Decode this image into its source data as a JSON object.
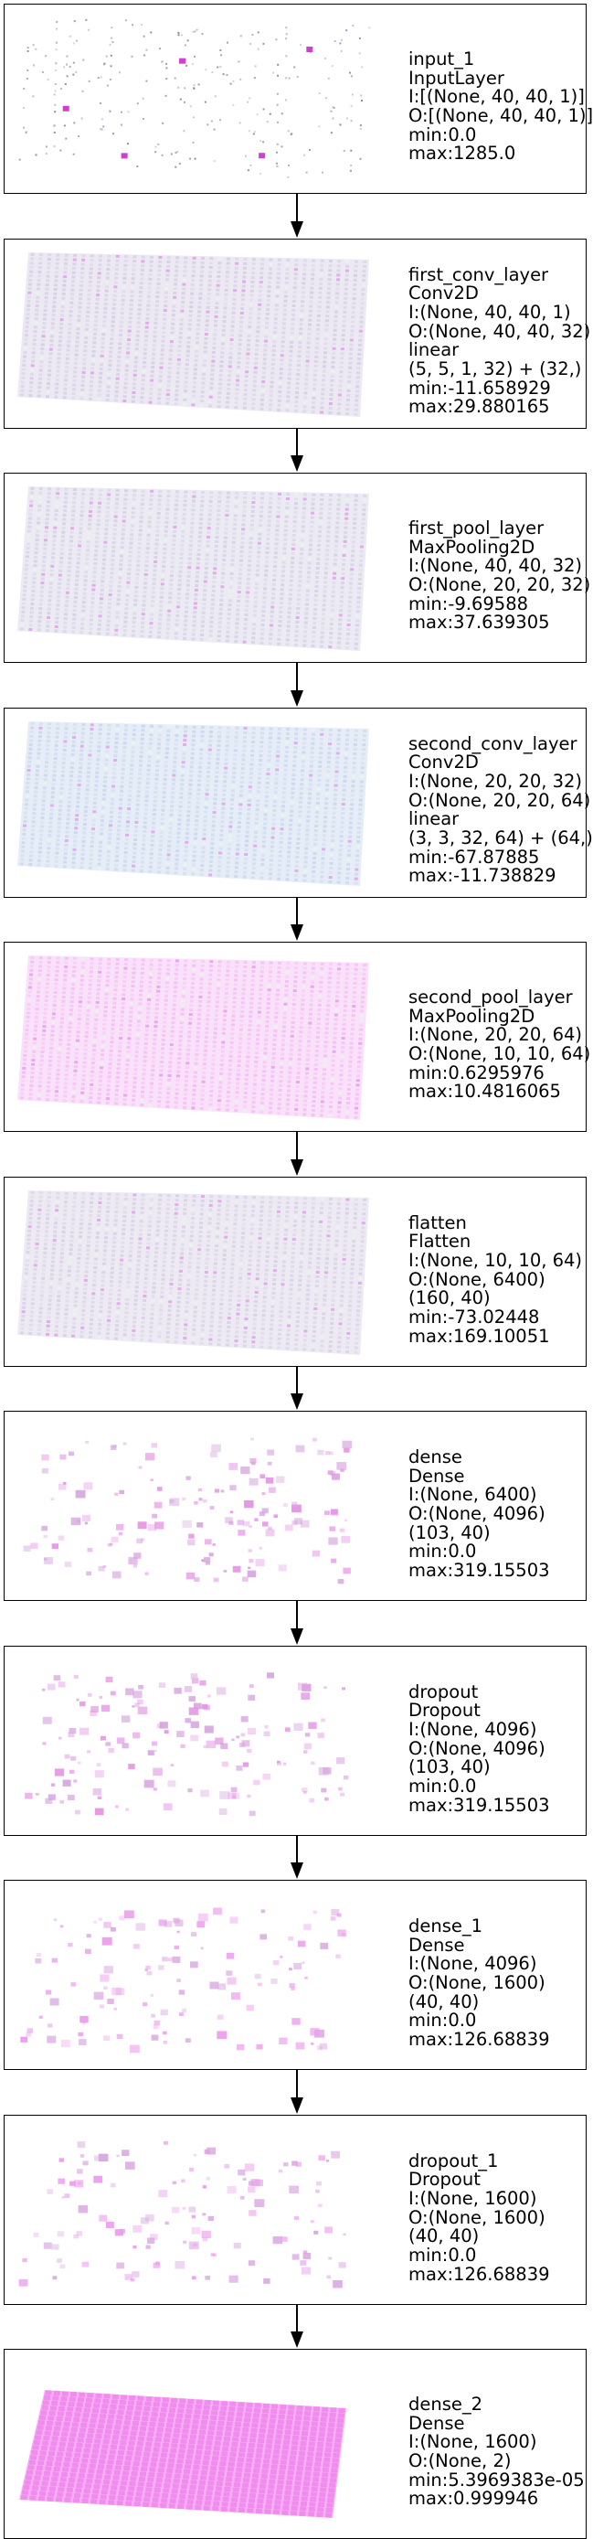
{
  "layers": [
    {
      "id": "input_1",
      "lines": [
        "input_1",
        "InputLayer",
        "I:[(None, 40, 40, 1)]",
        "O:[(None, 40, 40, 1)]",
        "min:0.0",
        "max:1285.0"
      ],
      "viz": "input",
      "color": "#b0a0c0"
    },
    {
      "id": "first_conv_layer",
      "lines": [
        "first_conv_layer",
        "Conv2D",
        "I:(None, 40, 40, 1)",
        "O:(None, 40, 40, 32)",
        "linear",
        "(5, 5, 1, 32) + (32,)",
        "min:-11.658929",
        "max:29.880165"
      ],
      "viz": "grid",
      "color": "#c8c0dc"
    },
    {
      "id": "first_pool_layer",
      "lines": [
        "first_pool_layer",
        "MaxPooling2D",
        "I:(None, 40, 40, 32)",
        "O:(None, 20, 20, 32)",
        "min:-9.69588",
        "max:37.639305"
      ],
      "viz": "grid",
      "color": "#c8c4dc"
    },
    {
      "id": "second_conv_layer",
      "lines": [
        "second_conv_layer",
        "Conv2D",
        "I:(None, 20, 20, 32)",
        "O:(None, 20, 20, 64)",
        "linear",
        "(3, 3, 32, 64) + (64,)",
        "min:-67.87885",
        "max:-11.738829"
      ],
      "viz": "grid",
      "color": "#b8cce8"
    },
    {
      "id": "second_pool_layer",
      "lines": [
        "second_pool_layer",
        "MaxPooling2D",
        "I:(None, 20, 20, 64)",
        "O:(None, 10, 10, 64)",
        "min:0.6295976",
        "max:10.4816065"
      ],
      "viz": "grid",
      "color": "#f2a8f0"
    },
    {
      "id": "flatten",
      "lines": [
        "flatten",
        "Flatten",
        "I:(None, 10, 10, 64)",
        "O:(None, 6400)",
        "(160, 40)",
        "min:-73.02448",
        "max:169.10051"
      ],
      "viz": "grid",
      "color": "#ccc4dc"
    },
    {
      "id": "dense",
      "lines": [
        "dense",
        "Dense",
        "I:(None, 6400)",
        "O:(None, 4096)",
        "(103, 40)",
        "min:0.0",
        "max:319.15503"
      ],
      "viz": "scatter",
      "color": "#e494e4"
    },
    {
      "id": "dropout",
      "lines": [
        "dropout",
        "Dropout",
        "I:(None, 4096)",
        "O:(None, 4096)",
        "(103, 40)",
        "min:0.0",
        "max:319.15503"
      ],
      "viz": "scatter",
      "color": "#e494e4"
    },
    {
      "id": "dense_1",
      "lines": [
        "dense_1",
        "Dense",
        "I:(None, 4096)",
        "O:(None, 1600)",
        "(40, 40)",
        "min:0.0",
        "max:126.68839"
      ],
      "viz": "scatter-light",
      "color": "#ec9cec"
    },
    {
      "id": "dropout_1",
      "lines": [
        "dropout_1",
        "Dropout",
        "I:(None, 1600)",
        "O:(None, 1600)",
        "(40, 40)",
        "min:0.0",
        "max:126.68839"
      ],
      "viz": "scatter-light",
      "color": "#ec9cec"
    },
    {
      "id": "dense_2",
      "lines": [
        "dense_2",
        "Dense",
        "I:(None, 1600)",
        "O:(None, 2)",
        "min:5.3969383e-05",
        "max:0.999946"
      ],
      "viz": "solid",
      "color": "#f080f0"
    }
  ]
}
